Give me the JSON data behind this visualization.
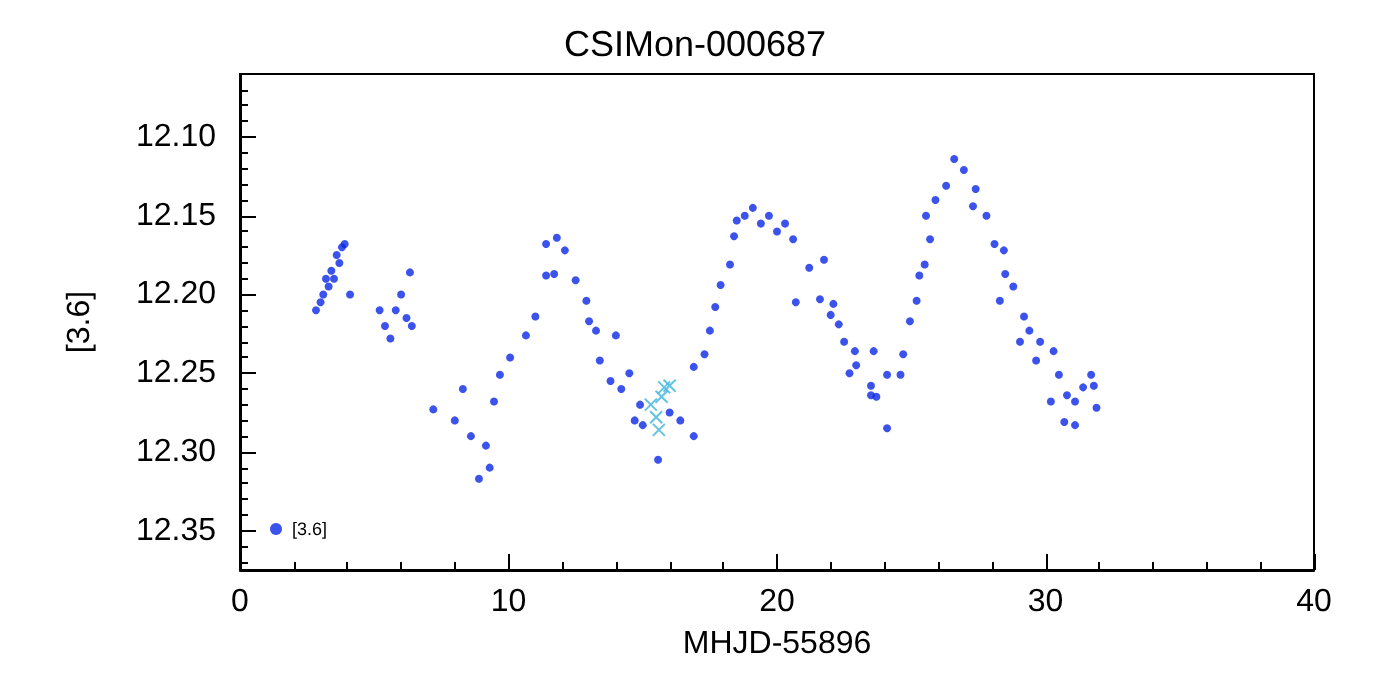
{
  "chart_data": {
    "type": "scatter",
    "title": "CSIMon-000687",
    "xlabel": "MHJD-55896",
    "ylabel": "[3.6]",
    "xlim": [
      0,
      40
    ],
    "xticks": [
      0,
      10,
      20,
      30,
      40
    ],
    "ylim": [
      12.375,
      12.06
    ],
    "yticks": [
      {
        "value": 12.1,
        "label": "12.10"
      },
      12.15,
      {
        "value": 12.2,
        "label": "12.20"
      },
      12.25,
      {
        "value": 12.3,
        "label": "12.30"
      },
      12.35
    ],
    "grid": false,
    "legend": "bottom left",
    "series": [
      {
        "name": "[3.6]",
        "color": "#0a28e6",
        "marker": "circle",
        "x": [
          2.83,
          3.0,
          3.1,
          3.2,
          3.3,
          3.4,
          3.5,
          3.6,
          3.7,
          3.8,
          3.9,
          4.1,
          5.2,
          5.4,
          5.6,
          5.8,
          6.0,
          6.2,
          6.33,
          6.4,
          7.2,
          8.0,
          8.3,
          8.6,
          8.9,
          9.16,
          9.3,
          9.46,
          9.68,
          10.06,
          10.65,
          11.0,
          11.4,
          11.4,
          11.7,
          11.8,
          12.1,
          12.5,
          12.9,
          13.0,
          13.26,
          14.0,
          13.4,
          13.8,
          14.2,
          14.5,
          14.9,
          14.7,
          15.0,
          15.57,
          16.0,
          16.4,
          16.9,
          16.9,
          17.3,
          17.5,
          17.7,
          17.9,
          18.25,
          18.4,
          18.5,
          18.8,
          19.1,
          19.4,
          19.7,
          20.0,
          20.3,
          20.6,
          21.2,
          21.75,
          20.7,
          21.6,
          22.1,
          22.0,
          22.3,
          22.5,
          22.9,
          22.95,
          22.7,
          23.5,
          23.5,
          23.7,
          23.6,
          24.1,
          24.6,
          24.7,
          24.1,
          24.95,
          25.2,
          25.3,
          25.5,
          25.7,
          25.55,
          25.9,
          26.3,
          26.6,
          26.96,
          27.4,
          27.3,
          27.8,
          28.1,
          28.45,
          28.5,
          28.8,
          28.3,
          29.2,
          29.4,
          29.05,
          29.8,
          30.3,
          29.65,
          30.5,
          30.2,
          30.8,
          31.1,
          30.7,
          31.1,
          31.7,
          31.8,
          31.9,
          31.4
        ],
        "values": [
          12.21,
          12.205,
          12.2,
          12.19,
          12.195,
          12.185,
          12.19,
          12.175,
          12.18,
          12.17,
          12.168,
          12.2,
          12.21,
          12.22,
          12.228,
          12.21,
          12.2,
          12.215,
          12.186,
          12.22,
          12.273,
          12.28,
          12.26,
          12.29,
          12.317,
          12.296,
          12.31,
          12.268,
          12.251,
          12.24,
          12.226,
          12.214,
          12.188,
          12.168,
          12.187,
          12.164,
          12.172,
          12.191,
          12.204,
          12.217,
          12.223,
          12.226,
          12.242,
          12.255,
          12.26,
          12.25,
          12.27,
          12.28,
          12.283,
          12.305,
          12.275,
          12.28,
          12.29,
          12.246,
          12.238,
          12.223,
          12.208,
          12.194,
          12.181,
          12.163,
          12.153,
          12.15,
          12.145,
          12.155,
          12.15,
          12.16,
          12.155,
          12.165,
          12.183,
          12.178,
          12.205,
          12.203,
          12.206,
          12.213,
          12.219,
          12.23,
          12.236,
          12.245,
          12.25,
          12.258,
          12.264,
          12.265,
          12.236,
          12.251,
          12.251,
          12.238,
          12.285,
          12.217,
          12.204,
          12.188,
          12.181,
          12.165,
          12.15,
          12.14,
          12.131,
          12.114,
          12.121,
          12.133,
          12.144,
          12.15,
          12.168,
          12.172,
          12.187,
          12.195,
          12.204,
          12.214,
          12.223,
          12.23,
          12.23,
          12.236,
          12.242,
          12.251,
          12.268,
          12.264,
          12.268,
          12.281,
          12.283,
          12.251,
          12.258,
          12.272,
          12.259
        ]
      },
      {
        "color": "#3cb4dc",
        "marker": "cross",
        "x": [
          15.3,
          15.5,
          15.6,
          15.7,
          15.8,
          16.0
        ],
        "values": [
          12.27,
          12.278,
          12.286,
          12.265,
          12.259,
          12.258
        ]
      }
    ]
  }
}
